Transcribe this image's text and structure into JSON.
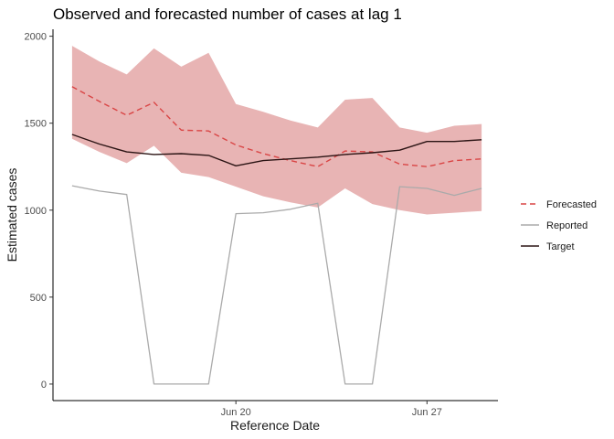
{
  "chart_data": {
    "type": "line",
    "title": "Observed and forecasted number of cases at lag 1",
    "xlabel": "Reference Date",
    "ylabel": "Estimated cases",
    "x_ticks": [
      {
        "label": "Jun 20",
        "index": 6
      },
      {
        "label": "Jun 27",
        "index": 13
      }
    ],
    "y_ticks": [
      0,
      500,
      1000,
      1500,
      2000
    ],
    "ylim": [
      -95,
      2040
    ],
    "xlim": [
      -0.7,
      15.6
    ],
    "grid": false,
    "legend_position": "right",
    "x": [
      "Jun 14",
      "Jun 15",
      "Jun 16",
      "Jun 17",
      "Jun 18",
      "Jun 19",
      "Jun 20",
      "Jun 21",
      "Jun 22",
      "Jun 23",
      "Jun 24",
      "Jun 25",
      "Jun 26",
      "Jun 27",
      "Jun 28",
      "Jun 29"
    ],
    "band": {
      "for_series": "Forecasted",
      "color": "#e8b4b4",
      "upper": [
        1945,
        1855,
        1780,
        1930,
        1825,
        1905,
        1610,
        1565,
        1515,
        1475,
        1635,
        1645,
        1475,
        1445,
        1485,
        1495
      ],
      "lower": [
        1410,
        1335,
        1270,
        1370,
        1215,
        1190,
        1135,
        1080,
        1045,
        1015,
        1125,
        1035,
        1000,
        975,
        985,
        995
      ]
    },
    "series": [
      {
        "name": "Forecasted",
        "color": "#d94545",
        "dash": "6,4",
        "width": 1.4,
        "values": [
          1710,
          1625,
          1545,
          1620,
          1460,
          1455,
          1375,
          1325,
          1285,
          1250,
          1340,
          1335,
          1265,
          1250,
          1285,
          1295
        ]
      },
      {
        "name": "Reported",
        "color": "#aaaaaa",
        "dash": "",
        "width": 1.3,
        "values": [
          1140,
          1110,
          1090,
          0,
          0,
          0,
          980,
          985,
          1005,
          1040,
          0,
          0,
          1135,
          1125,
          1085,
          1125
        ]
      },
      {
        "name": "Target",
        "color": "#2b1414",
        "dash": "",
        "width": 1.4,
        "values": [
          1435,
          1380,
          1335,
          1320,
          1325,
          1315,
          1255,
          1285,
          1295,
          1305,
          1320,
          1330,
          1345,
          1395,
          1395,
          1405
        ]
      }
    ],
    "legend": [
      {
        "name": "Forecasted",
        "color": "#d94545",
        "dash": "6,4"
      },
      {
        "name": "Reported",
        "color": "#aaaaaa",
        "dash": ""
      },
      {
        "name": "Target",
        "color": "#2b1414",
        "dash": ""
      }
    ]
  }
}
